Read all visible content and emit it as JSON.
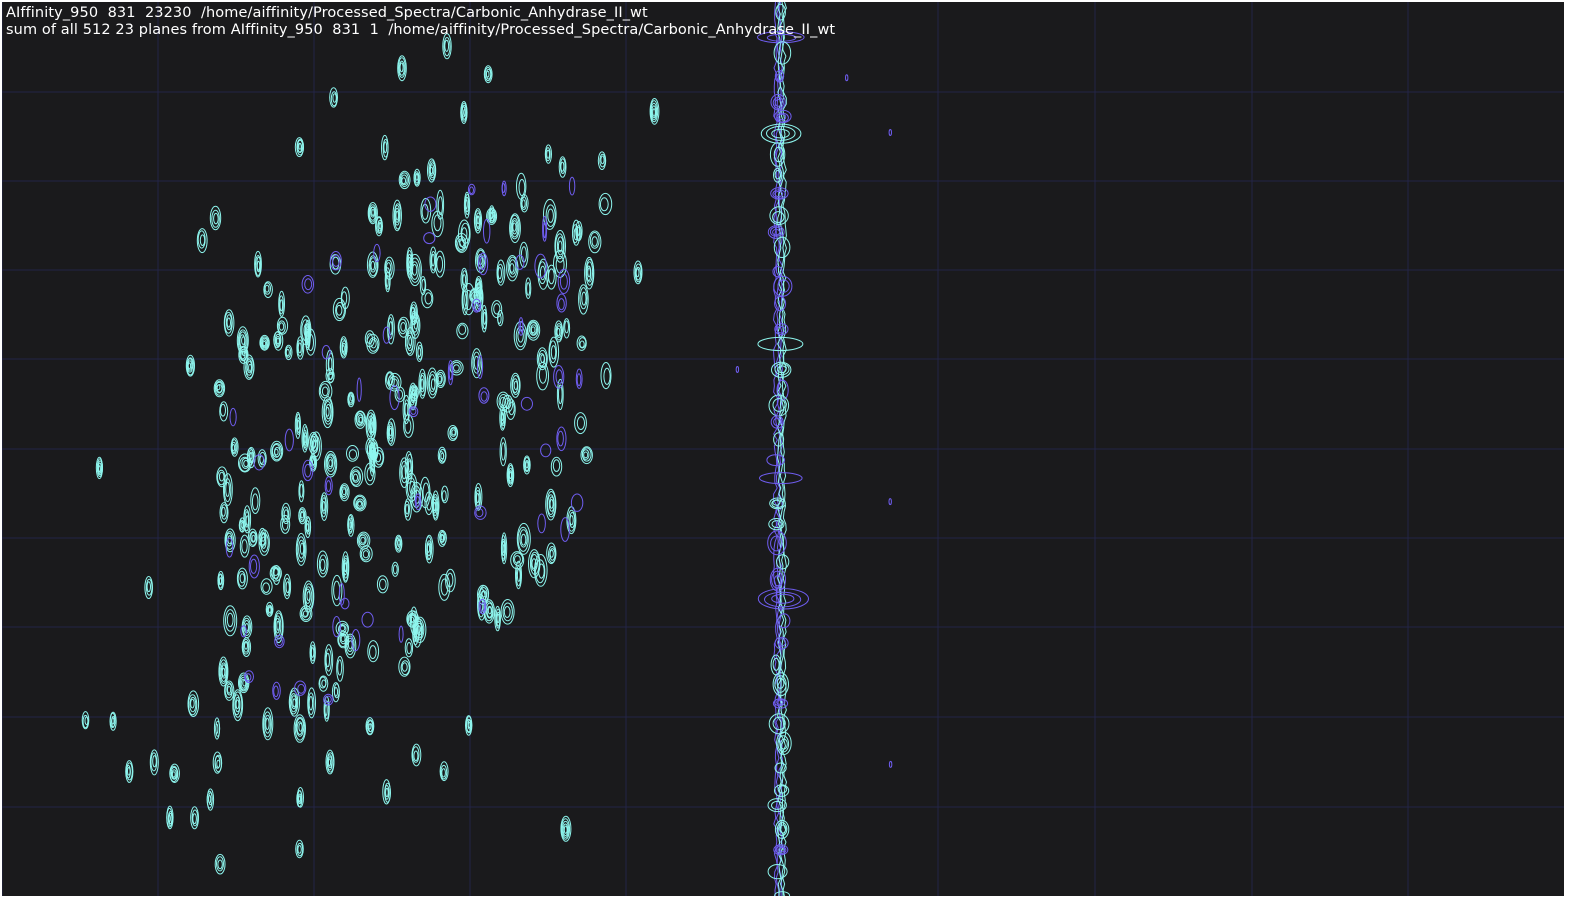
{
  "header": {
    "line1": "AIffinity_950  831  23230  /home/aiffinity/Processed_Spectra/Carbonic_Anhydrase_II_wt",
    "line2": "sum of all 512 23 planes from AIffinity_950  831  1  /home/aiffinity/Processed_Spectra/Carbonic_Anhydrase_II_wt"
  },
  "colors": {
    "background": "#1a1a1c",
    "grid": "#232446",
    "contour_positive": "#8ef6ee",
    "contour_negative": "#6f5df0"
  }
}
